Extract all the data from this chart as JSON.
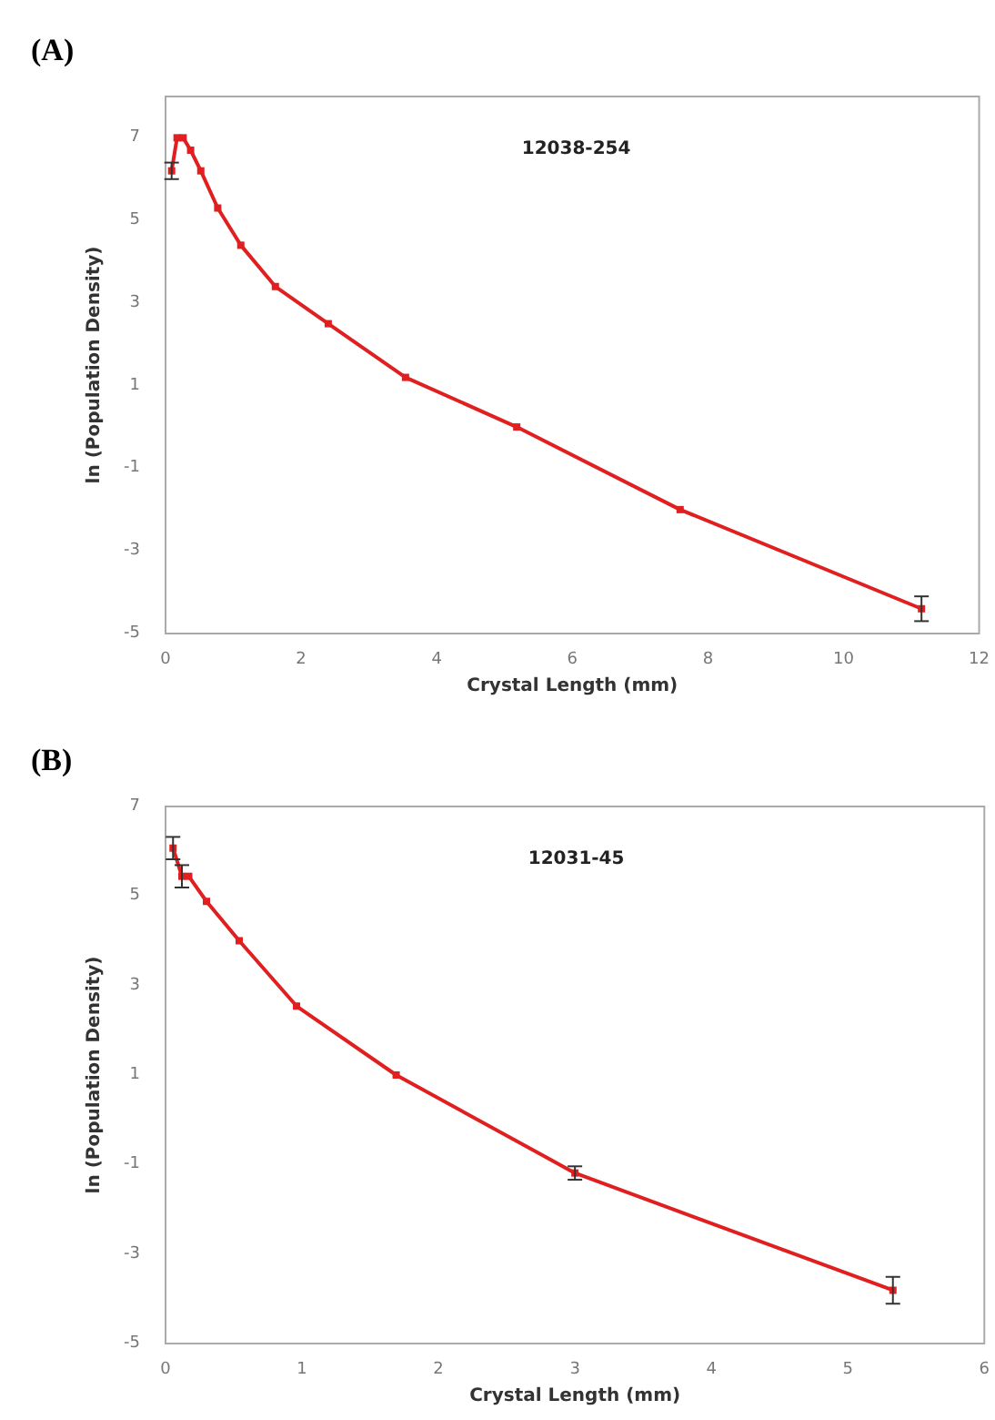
{
  "chart_data": [
    {
      "type": "line",
      "title": "(A)",
      "xlabel": "Crystal Length (mm)",
      "ylabel": "ln (Population Density)",
      "annotations": [
        "12038-254"
      ],
      "marker": "square",
      "line_style": "solid",
      "grid": false,
      "xlim": [
        0,
        12
      ],
      "xticks": [
        0,
        2,
        4,
        6,
        8,
        10,
        12
      ],
      "ylim": [
        -5,
        8
      ],
      "yticks": [
        -5,
        -3,
        -1,
        1,
        3,
        5,
        7
      ],
      "series": [
        {
          "color": "#e02020",
          "x": [
            0.09,
            0.17,
            0.26,
            0.37,
            0.52,
            0.77,
            1.11,
            1.62,
            2.4,
            3.54,
            5.18,
            7.59,
            11.15
          ],
          "values": [
            6.2,
            7.0,
            7.0,
            6.7,
            6.2,
            5.3,
            4.4,
            3.4,
            2.5,
            1.2,
            0.0,
            -2.0,
            -4.4
          ],
          "errors": [
            0.2,
            null,
            null,
            null,
            null,
            null,
            null,
            null,
            null,
            null,
            null,
            null,
            0.3
          ]
        }
      ]
    },
    {
      "type": "line",
      "title": "(B)",
      "xlabel": "Crystal Length (mm)",
      "ylabel": "ln (Population Density)",
      "annotations": [
        "12031-45"
      ],
      "marker": "square",
      "line_style": "solid",
      "grid": false,
      "xlim": [
        0,
        6
      ],
      "xticks": [
        0,
        1,
        2,
        3,
        4,
        5,
        6
      ],
      "ylim": [
        -5,
        7
      ],
      "yticks": [
        -5,
        -3,
        -1,
        1,
        3,
        5,
        7
      ],
      "series": [
        {
          "color": "#e02020",
          "x": [
            0.055,
            0.12,
            0.17,
            0.3,
            0.54,
            0.96,
            1.69,
            3.0,
            5.33
          ],
          "values": [
            6.07,
            5.44,
            5.44,
            4.88,
            4.0,
            2.54,
            1.0,
            -1.19,
            -3.81
          ],
          "errors": [
            0.25,
            0.25,
            null,
            null,
            null,
            null,
            null,
            0.15,
            0.3
          ]
        }
      ]
    }
  ]
}
